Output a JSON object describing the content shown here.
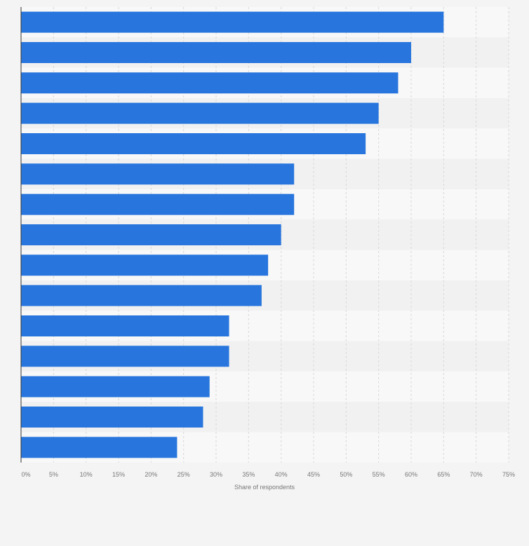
{
  "colors": {
    "page_background": "#f4f4f4",
    "band_light": "#f8f8f8",
    "band_dark": "#f1f1f1",
    "bar": "#2876dd",
    "grid": "#d9d9d9",
    "axis": "#333333",
    "tick_text": "#777777"
  },
  "chart_data": {
    "type": "bar",
    "orientation": "horizontal",
    "title": "",
    "xlabel": "Share of respondents",
    "ylabel": "",
    "xlim": [
      0,
      75
    ],
    "x_ticks": [
      "0%",
      "5%",
      "10%",
      "15%",
      "20%",
      "25%",
      "30%",
      "35%",
      "40%",
      "45%",
      "50%",
      "55%",
      "60%",
      "65%",
      "70%",
      "75%"
    ],
    "grid": true,
    "legend": "none",
    "categories": [
      "",
      "",
      "",
      "",
      "",
      "",
      "",
      "",
      "",
      "",
      "",
      "",
      "",
      "",
      ""
    ],
    "values": [
      65,
      60,
      58,
      55,
      53,
      42,
      42,
      40,
      38,
      37,
      32,
      32,
      29,
      28,
      24
    ],
    "unit": "%"
  }
}
